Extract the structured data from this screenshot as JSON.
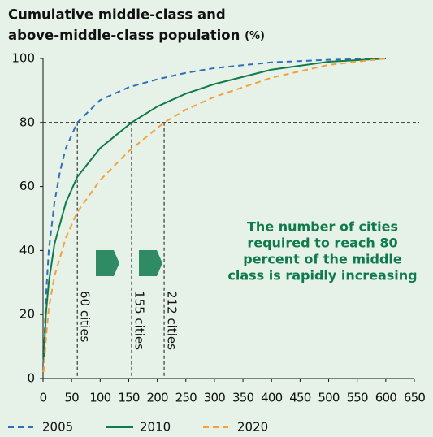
{
  "chart_data": {
    "type": "line",
    "title": [
      "Cumulative middle-class and",
      "above-middle-class population"
    ],
    "unit": "(%)",
    "xlim": [
      0,
      650
    ],
    "xticks": [
      0,
      50,
      100,
      150,
      200,
      250,
      300,
      350,
      400,
      450,
      500,
      550,
      600,
      650
    ],
    "ylim": [
      0,
      100
    ],
    "yticks": [
      0,
      20,
      40,
      60,
      80,
      100
    ],
    "reference_y": 80,
    "markers": [
      {
        "x": 60,
        "label": "60 cities"
      },
      {
        "x": 155,
        "label": "155 cities"
      },
      {
        "x": 212,
        "label": "212 cities"
      }
    ],
    "annotation": [
      "The number of cities",
      "required to reach 80",
      "percent of the middle",
      "class is rapidly increasing"
    ],
    "series": [
      {
        "name": "2005",
        "color": "#2f6eba",
        "dash": true,
        "x": [
          1,
          5,
          10,
          20,
          30,
          40,
          60,
          100,
          150,
          200,
          250,
          300,
          400,
          500,
          600
        ],
        "values": [
          5,
          25,
          40,
          55,
          65,
          72,
          80,
          87,
          91,
          93.5,
          95.5,
          97,
          98.8,
          99.6,
          100
        ]
      },
      {
        "name": "2010",
        "color": "#0f7a4a",
        "dash": false,
        "x": [
          1,
          5,
          10,
          20,
          40,
          60,
          100,
          155,
          200,
          250,
          300,
          400,
          500,
          600
        ],
        "values": [
          5,
          20,
          30,
          42,
          55,
          63,
          72,
          80,
          85,
          89,
          92,
          96.5,
          99,
          100
        ]
      },
      {
        "name": "2020",
        "color": "#f5a03a",
        "dash": true,
        "x": [
          1,
          5,
          10,
          20,
          40,
          60,
          100,
          150,
          212,
          250,
          300,
          400,
          500,
          600
        ],
        "values": [
          2,
          12,
          22,
          32,
          44,
          52,
          62,
          71,
          80,
          84,
          88,
          94,
          98,
          100
        ]
      }
    ]
  }
}
